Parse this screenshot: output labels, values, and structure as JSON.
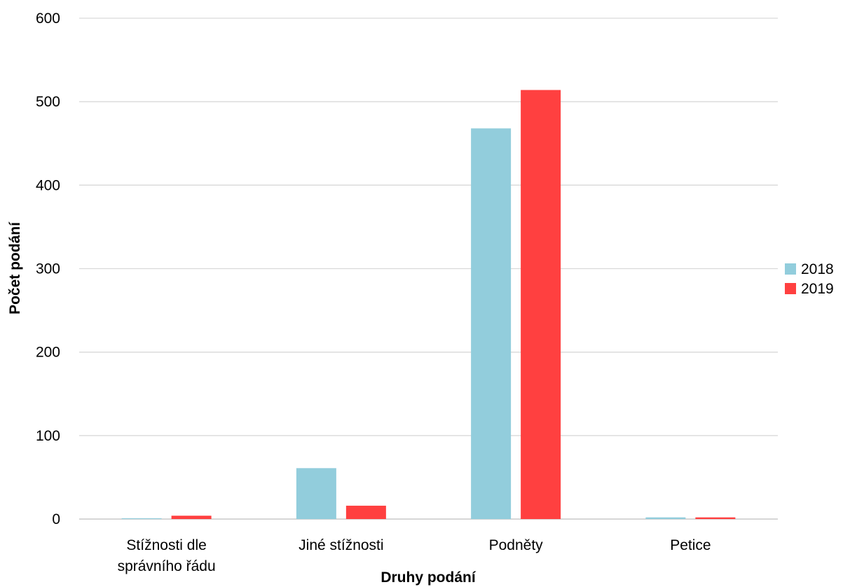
{
  "chart_data": {
    "type": "bar",
    "categories": [
      [
        "Stížnosti dle",
        "správního řádu"
      ],
      [
        "Jiné stížnosti"
      ],
      [
        "Podněty"
      ],
      [
        "Petice"
      ]
    ],
    "series": [
      {
        "name": "2018",
        "color": "#92CDDC",
        "values": [
          1,
          61,
          468,
          2
        ]
      },
      {
        "name": "2019",
        "color": "#FF4040",
        "values": [
          4,
          16,
          514,
          2
        ]
      }
    ],
    "xlabel": "Druhy podání",
    "ylabel": "Počet podání",
    "ylim": [
      0,
      600
    ],
    "yticks": [
      0,
      100,
      200,
      300,
      400,
      500,
      600
    ],
    "grid": true,
    "legend_position": "right"
  }
}
